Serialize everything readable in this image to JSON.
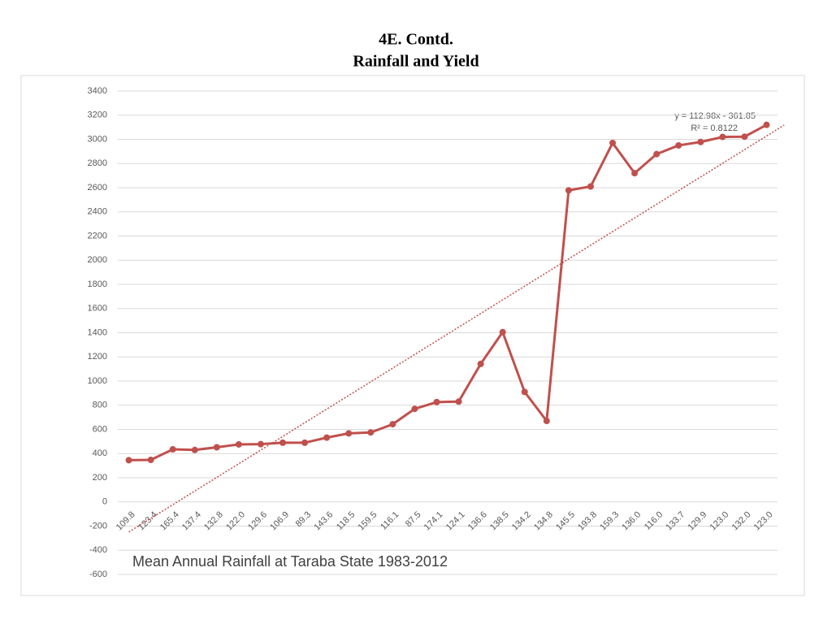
{
  "chart_data": {
    "type": "line",
    "title": "4E. Contd.",
    "subtitle": "Rainfall and Yield",
    "x_label": "Mean Annual Rainfall at Taraba State 1983-2012",
    "categories": [
      "109.8",
      "123.4",
      "165.4",
      "137.4",
      "132.8",
      "122.0",
      "129.6",
      "106.9",
      "89.3",
      "143.6",
      "118.5",
      "159.5",
      "116.1",
      "87.5",
      "174.1",
      "124.1",
      "136.6",
      "138.5",
      "134.2",
      "134.8",
      "145.5",
      "193.8",
      "159.3",
      "136.0",
      "116.0",
      "133.7",
      "129.9",
      "123.0",
      "132.0",
      "123.0"
    ],
    "values": [
      345,
      348,
      435,
      430,
      452,
      476,
      478,
      490,
      490,
      532,
      567,
      575,
      643,
      770,
      826,
      830,
      1142,
      1405,
      910,
      670,
      2578,
      2610,
      2970,
      2720,
      2878,
      2950,
      2978,
      3020,
      3022,
      3120
    ],
    "color": "#c0504d",
    "ylim": [
      -600,
      3400
    ],
    "yticks": [
      -600,
      -400,
      -200,
      0,
      200,
      400,
      600,
      800,
      1000,
      1200,
      1400,
      1600,
      1800,
      2000,
      2200,
      2400,
      2600,
      2800,
      3000,
      3200,
      3400
    ],
    "grid": true,
    "trendline": {
      "equation": "y = 112.98x - 361.85",
      "r2": "R² = 0.8122",
      "slope": 112.98,
      "intercept": -361.85
    }
  }
}
